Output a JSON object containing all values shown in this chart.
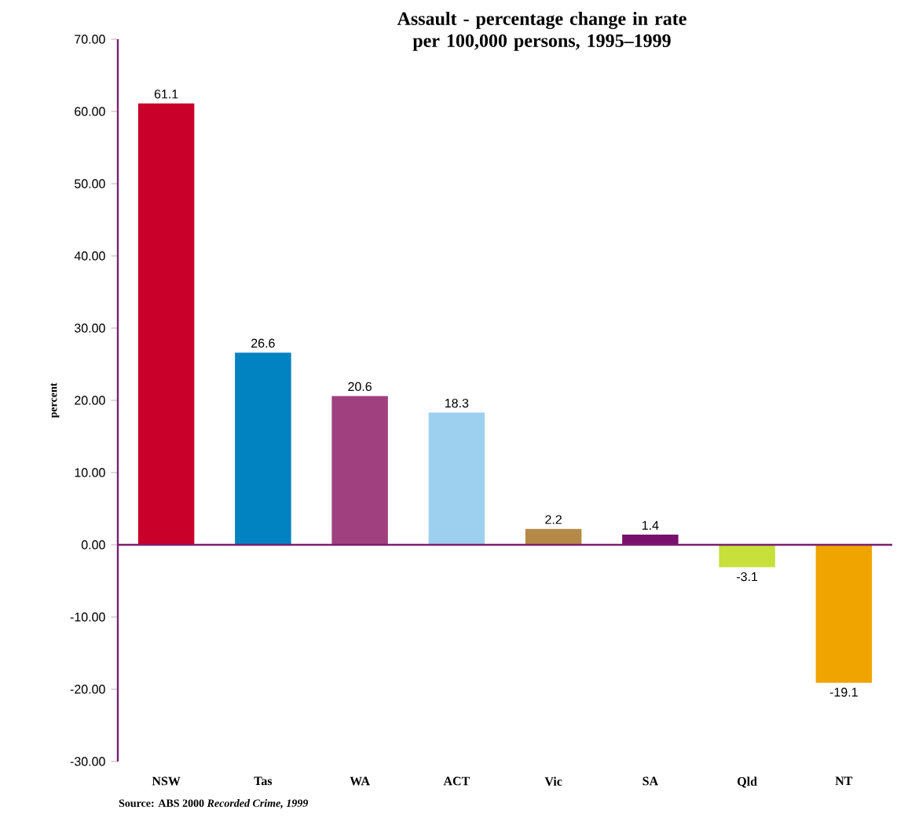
{
  "chart_data": {
    "type": "bar",
    "title": "Assault - percentage change in rate\nper 100,000 persons, 1995–1999",
    "ylabel": "percent",
    "categories": [
      "NSW",
      "Tas",
      "WA",
      "ACT",
      "Vic",
      "SA",
      "Qld",
      "NT"
    ],
    "values": [
      61.1,
      26.6,
      20.6,
      18.3,
      2.2,
      1.4,
      -3.1,
      -19.1
    ],
    "colors": [
      "#c8002a",
      "#0083c0",
      "#a0407e",
      "#9dd0ee",
      "#b48a46",
      "#7a0f6e",
      "#c7e03a",
      "#f0a400"
    ],
    "ylim": [
      -30,
      70
    ],
    "yticks": [
      {
        "value": -30,
        "label": "-30.00"
      },
      {
        "value": -20,
        "label": "-20.00"
      },
      {
        "value": -10,
        "label": "-10.00"
      },
      {
        "value": 0,
        "label": "0.00"
      },
      {
        "value": 10,
        "label": "10.00"
      },
      {
        "value": 20,
        "label": "20.00"
      },
      {
        "value": 30,
        "label": "30.00"
      },
      {
        "value": 40,
        "label": "40.00"
      },
      {
        "value": 50,
        "label": "50.00"
      },
      {
        "value": 60,
        "label": "60.00"
      },
      {
        "value": 70,
        "label": "70.00"
      }
    ],
    "ref_lines": [
      {
        "axis": "y",
        "value": 0,
        "color": "#7b1f6f"
      }
    ],
    "data_labels": true,
    "annotations": [
      "Source: ABS 2000 *Recorded Crime, 1999*"
    ]
  }
}
